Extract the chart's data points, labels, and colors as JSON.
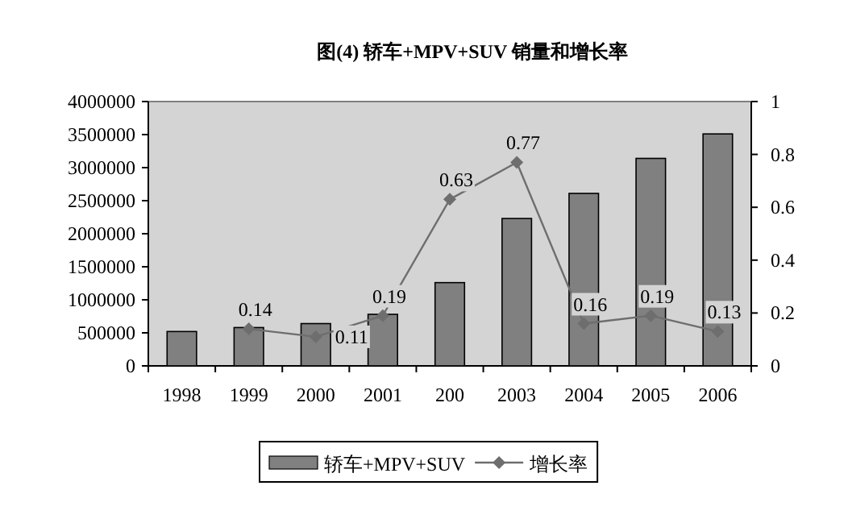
{
  "chart_data": {
    "type": "bar",
    "title": "图(4)      轿车+MPV+SUV 销量和增长率",
    "categories": [
      "1998",
      "1999",
      "2000",
      "2001",
      "200",
      "2003",
      "2004",
      "2005",
      "2006"
    ],
    "series": [
      {
        "name": "轿车+MPV+SUV",
        "color": "#808080",
        "values": [
          520000,
          580000,
          640000,
          780000,
          1260000,
          2230000,
          2610000,
          3140000,
          3510000
        ]
      },
      {
        "name": "增长率",
        "type": "line",
        "axis": "y2",
        "color": "#6e6e6e",
        "values": [
          null,
          0.14,
          0.11,
          0.19,
          0.63,
          0.77,
          0.16,
          0.19,
          0.13
        ],
        "value_labels": [
          null,
          "0.14",
          "0.11",
          "0.19",
          "0.63",
          "0.77",
          "0.16",
          "0.19",
          "0.13"
        ]
      }
    ],
    "ylim": [
      0,
      4000000
    ],
    "yticks": [
      0,
      500000,
      1000000,
      1500000,
      2000000,
      2500000,
      3000000,
      3500000,
      4000000
    ],
    "y2lim": [
      0,
      1
    ],
    "y2ticks": [
      0,
      0.2,
      0.4,
      0.6,
      0.8,
      1
    ],
    "marker": "diamond",
    "grid": false,
    "legend": "bottom"
  }
}
